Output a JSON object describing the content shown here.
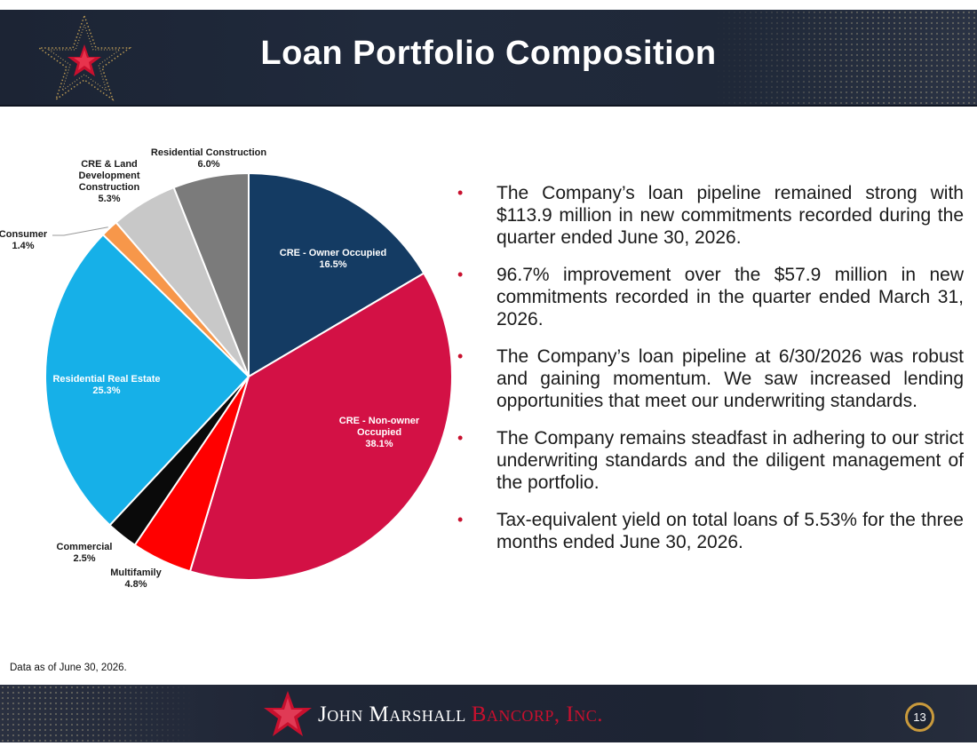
{
  "header": {
    "title": "Loan Portfolio Composition",
    "logo_icon": "gold-red-star-icon"
  },
  "chart_data": {
    "type": "pie",
    "title": "",
    "start_angle_deg": 0,
    "direction": "clockwise",
    "slices": [
      {
        "label": "CRE - Owner Occupied",
        "value": 16.5,
        "value_label": "16.5%",
        "color": "#143b63",
        "label_color": "#ffffff"
      },
      {
        "label": "CRE - Non-owner Occupied",
        "value": 38.1,
        "value_label": "38.1%",
        "color": "#d31145",
        "label_color": "#ffffff"
      },
      {
        "label": "Multifamily",
        "value": 4.8,
        "value_label": "4.8%",
        "color": "#ff0000",
        "label_color": "#1a1a1a"
      },
      {
        "label": "Commercial",
        "value": 2.5,
        "value_label": "2.5%",
        "color": "#0a0a0a",
        "label_color": "#1a1a1a"
      },
      {
        "label": "Residential Real Estate",
        "value": 25.3,
        "value_label": "25.3%",
        "color": "#16b0e8",
        "label_color": "#ffffff"
      },
      {
        "label": "Consumer",
        "value": 1.4,
        "value_label": "1.4%",
        "color": "#f7974a",
        "label_color": "#1a1a1a"
      },
      {
        "label": "CRE & Land Development Construction",
        "value": 5.3,
        "value_label": "5.3%",
        "color": "#c8c8c8",
        "label_color": "#1a1a1a"
      },
      {
        "label": "Residential Construction",
        "value": 6.0,
        "value_label": "6.0%",
        "color": "#7b7b7b",
        "label_color": "#1a1a1a"
      }
    ]
  },
  "bullets": [
    "The Company’s loan pipeline remained strong with $113.9 million in new commitments recorded during the quarter ended June 30, 2026.",
    "96.7% improvement over the $57.9 million in new commitments recorded in the quarter ended March 31, 2026.",
    "The Company’s loan pipeline at 6/30/2026 was robust and gaining momentum. We saw increased lending opportunities that meet our underwriting standards.",
    "The Company remains steadfast in adhering to our strict underwriting standards and the diligent management of the portfolio.",
    "Tax-equivalent yield on total loans of 5.53% for the three months ended June 30, 2026."
  ],
  "bullet_symbol": "•",
  "footnote": "Data as of June 30, 2026.",
  "footer": {
    "brand_part1": "John Marshall",
    "brand_part2": "Bancorp, Inc.",
    "page_number": "13",
    "logo_icon": "red-star-icon"
  },
  "colors": {
    "header_bg": "#1f2838",
    "accent_red": "#c8102e",
    "accent_gold": "#c99a3c"
  }
}
